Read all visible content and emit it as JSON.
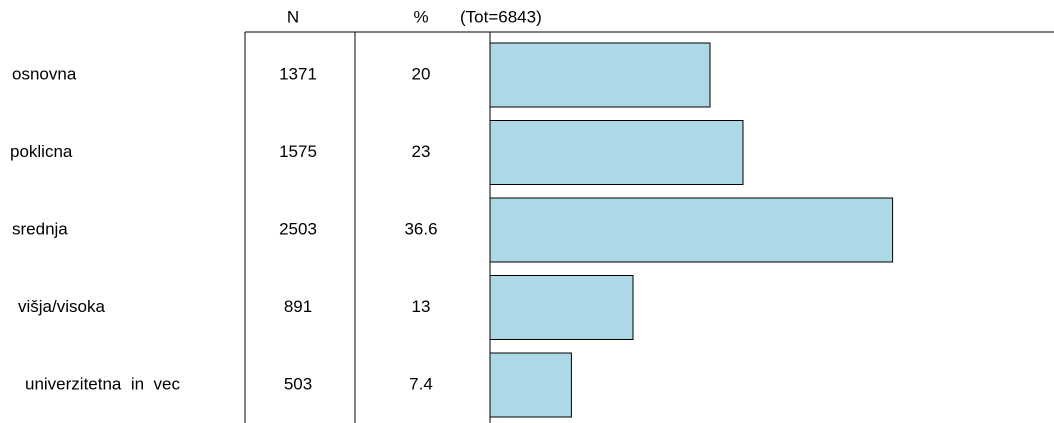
{
  "chart_data": {
    "type": "bar",
    "orientation": "horizontal",
    "column_headers": [
      "N",
      "%"
    ],
    "total_label": "(Tot=6843)",
    "categories": [
      "osnovna",
      "poklicna",
      "srednja",
      "višja/visoka",
      "univerzitetna  in  vec"
    ],
    "n": [
      1371,
      1575,
      2503,
      891,
      503
    ],
    "values": [
      20,
      23,
      36.6,
      13,
      7.4
    ],
    "color": "#add8e6"
  }
}
